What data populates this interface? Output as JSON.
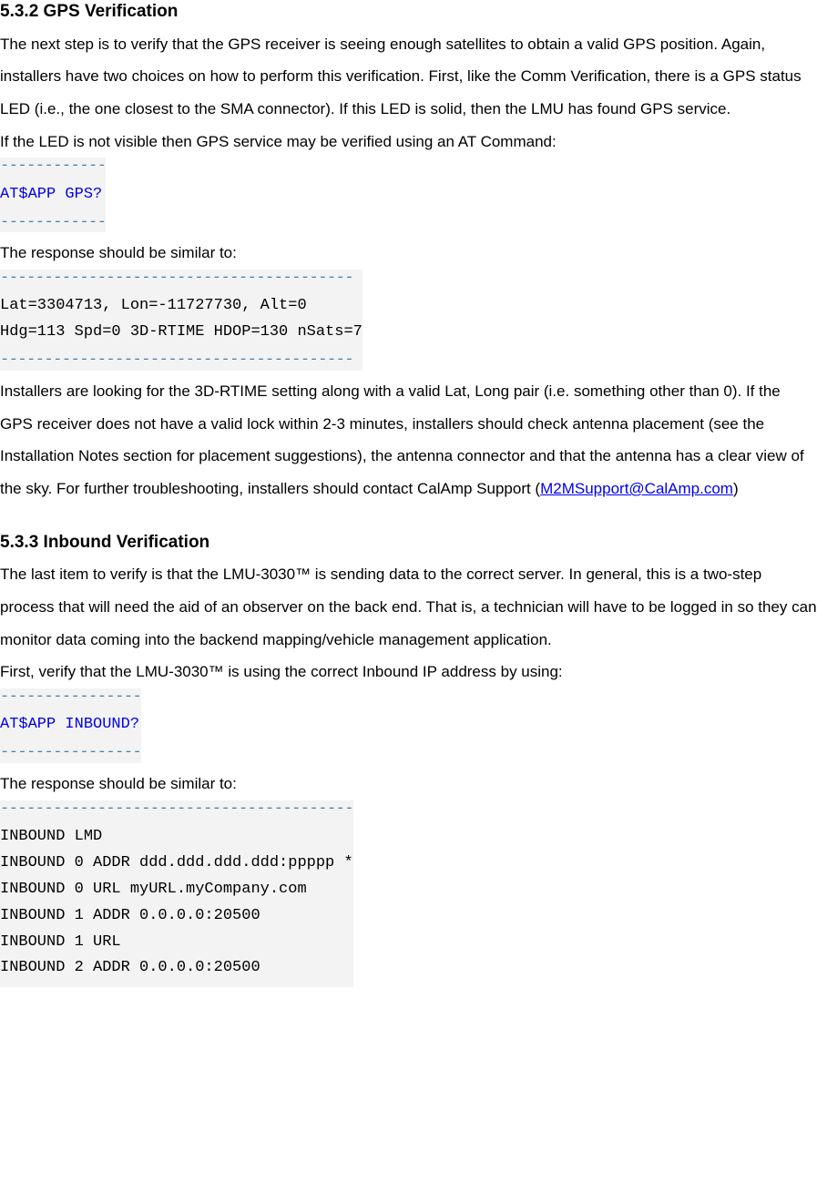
{
  "section1": {
    "heading": "5.3.2 GPS Verification",
    "para1": "The next step is to verify that the GPS receiver is seeing enough satellites to obtain a valid GPS position. Again, installers have two choices on how to perform this verification. First, like the Comm Verification, there is a GPS status LED (i.e., the one closest to the SMA connector). If this LED is solid, then the LMU has found GPS service.",
    "para2": "If the LED is not visible then GPS service may be verified using an AT Command:",
    "code1": {
      "border": "------------",
      "content": "AT$APP GPS?",
      "border_color": "#4682b4",
      "command_color": "#0000ee",
      "bg_color": "#f3f3f3"
    },
    "para3": "The response should be similar to:",
    "code2": {
      "border": "----------------------------------------",
      "line1": "Lat=3304713, Lon=-11727730, Alt=0",
      "line2": "Hdg=113 Spd=0 3D-RTIME HDOP=130 nSats=7",
      "border_color": "#4682b4",
      "bg_color": "#f3f3f3"
    },
    "para4_before": "Installers are looking for the 3D-RTIME setting along with a valid Lat, Long pair (i.e. something other than 0). If the GPS receiver does not have a valid lock within 2-3 minutes, installers should check antenna placement (see the Installation Notes section for placement suggestions), the antenna connector and that the antenna has a clear view of the sky. For further troubleshooting, installers should contact CalAmp Support (",
    "para4_link": "M2MSupport@CalAmp.com",
    "para4_after": ")"
  },
  "section2": {
    "heading": "5.3.3 Inbound Verification",
    "para1": "The last item to verify is that the LMU-3030™ is sending data to the correct server. In general, this is a two-step process that will need the aid of an observer on the back end. That is, a technician will have to be logged in so they can monitor data coming into the backend mapping/vehicle management application.",
    "para2": "First, verify that the LMU-3030™ is using the correct Inbound IP address by using:",
    "code1": {
      "border": "----------------",
      "content": "AT$APP INBOUND?",
      "border_color": "#4682b4",
      "command_color": "#0000ee",
      "bg_color": "#f3f3f3"
    },
    "para3": "The response should be similar to:",
    "code2": {
      "border": "----------------------------------------",
      "line1": "INBOUND LMD",
      "line2": "INBOUND 0 ADDR ddd.ddd.ddd.ddd:ppppp *",
      "line3": "INBOUND 0 URL  myURL.myCompany.com",
      "line4": "INBOUND 1 ADDR 0.0.0.0:20500",
      "line5": "INBOUND 1 URL",
      "line6": "INBOUND 2 ADDR 0.0.0.0:20500",
      "border_color": "#4682b4",
      "bg_color": "#f3f3f3"
    }
  }
}
